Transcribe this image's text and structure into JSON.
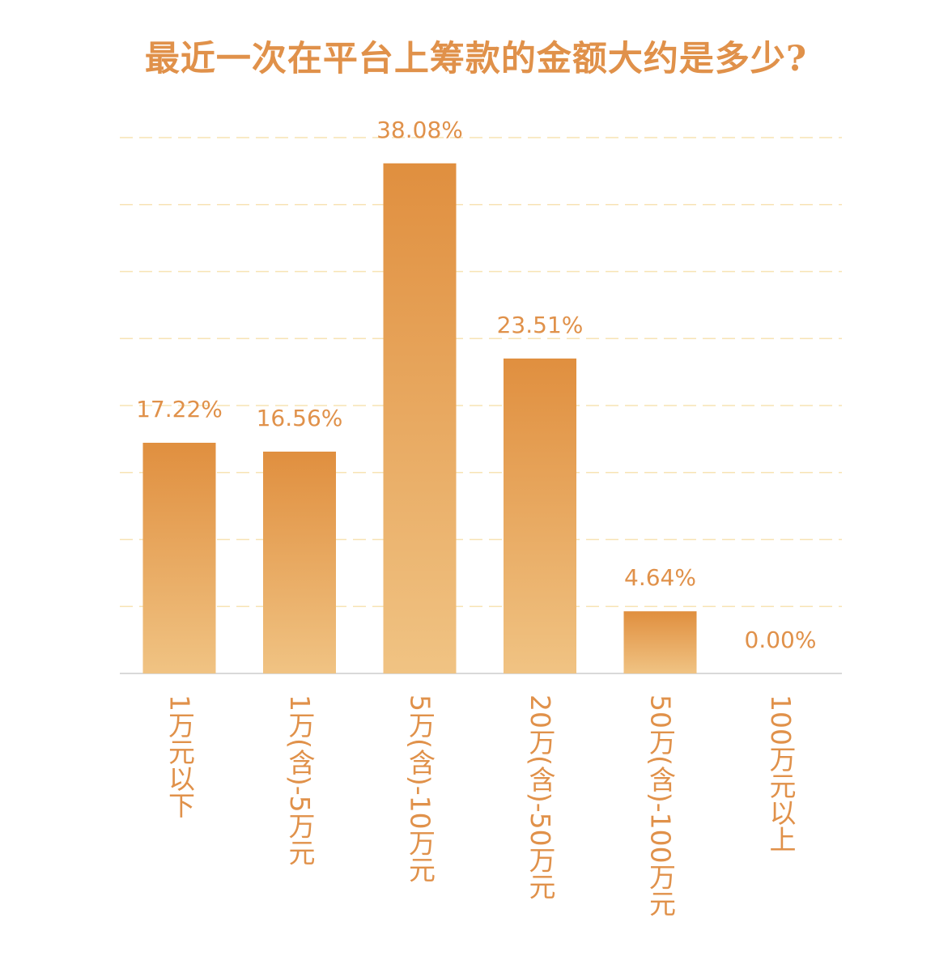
{
  "colors": {
    "accent": "#e0914a",
    "bar_top": "#e08f3f",
    "bar_bottom": "#f0c383",
    "grid": "#f7e3b4",
    "axis": "#d9d9d9"
  },
  "chart_data": {
    "type": "bar",
    "title": "最近一次在平台上筹款的金额大约是多少?",
    "categories": [
      "1万元以下",
      "1万(含)-5万元",
      "5万(含)-10万元",
      "20万(含)-50万元",
      "50万(含)-100万元",
      "100万元以上"
    ],
    "values": [
      17.22,
      16.56,
      38.08,
      23.51,
      4.64,
      0.0
    ],
    "value_labels": [
      "17.22%",
      "16.56%",
      "38.08%",
      "23.51%",
      "4.64%",
      "0.00%"
    ],
    "ylim": [
      0,
      40
    ],
    "grid": true,
    "legend": "none"
  }
}
